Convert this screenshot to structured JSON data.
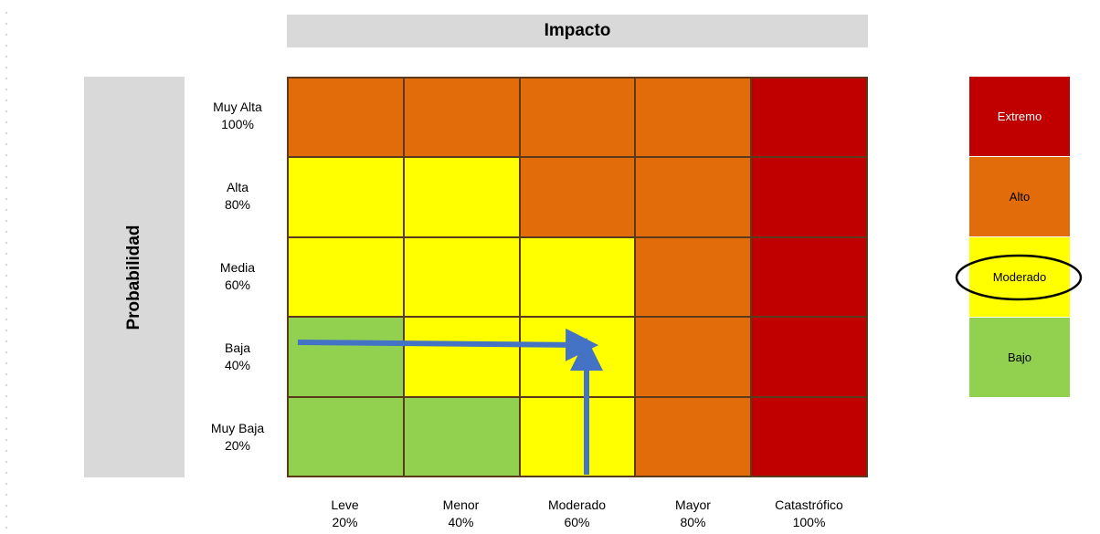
{
  "header": {
    "impacto": "Impacto"
  },
  "axis": {
    "probabilidad": "Probabilidad"
  },
  "rows": [
    {
      "name": "Muy Alta",
      "pct": "100%"
    },
    {
      "name": "Alta",
      "pct": "80%"
    },
    {
      "name": "Media",
      "pct": "60%"
    },
    {
      "name": "Baja",
      "pct": "40%"
    },
    {
      "name": "Muy Baja",
      "pct": "20%"
    }
  ],
  "columns": [
    {
      "name": "Leve",
      "pct": "20%"
    },
    {
      "name": "Menor",
      "pct": "40%"
    },
    {
      "name": "Moderado",
      "pct": "60%"
    },
    {
      "name": "Mayor",
      "pct": "80%"
    },
    {
      "name": "Catastrófico",
      "pct": "100%"
    }
  ],
  "matrix": [
    [
      "alto",
      "alto",
      "alto",
      "alto",
      "extremo"
    ],
    [
      "moderado",
      "moderado",
      "alto",
      "alto",
      "extremo"
    ],
    [
      "moderado",
      "moderado",
      "moderado",
      "alto",
      "extremo"
    ],
    [
      "bajo",
      "moderado",
      "moderado",
      "alto",
      "extremo"
    ],
    [
      "bajo",
      "bajo",
      "moderado",
      "alto",
      "extremo"
    ]
  ],
  "levels": {
    "extremo": {
      "label": "Extremo",
      "color": "#c00000",
      "text_color": "#ffffff"
    },
    "alto": {
      "label": "Alto",
      "color": "#e26b0a",
      "text_color": "#000000"
    },
    "moderado": {
      "label": "Moderado",
      "color": "#ffff00",
      "text_color": "#000000"
    },
    "bajo": {
      "label": "Bajo",
      "color": "#92d050",
      "text_color": "#000000"
    }
  },
  "legend_order": [
    "extremo",
    "alto",
    "moderado",
    "bajo"
  ],
  "highlighted_level": "moderado",
  "arrow_color": "#4472c4",
  "highlight_ring_color": "#000000"
}
